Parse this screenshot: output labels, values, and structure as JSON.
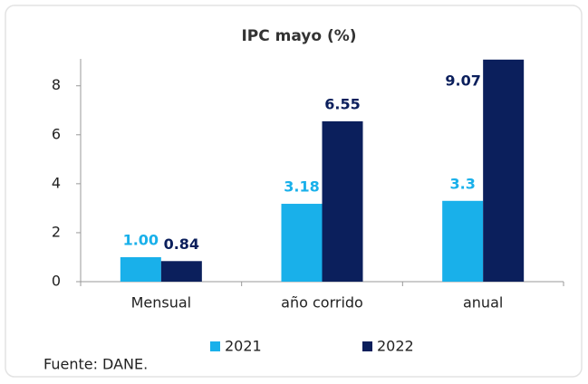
{
  "chart_data": {
    "type": "bar",
    "title": "IPC mayo (%)",
    "categories": [
      "Mensual",
      "año corrido",
      "anual"
    ],
    "series": [
      {
        "name": "2021",
        "color": "#19b0ea",
        "values": [
          1.0,
          3.18,
          3.3
        ],
        "value_labels": [
          "1.00",
          "3.18",
          "3.3"
        ]
      },
      {
        "name": "2022",
        "color": "#0b1f5c",
        "values": [
          0.84,
          6.55,
          9.07
        ],
        "value_labels": [
          "0.84",
          "6.55",
          "9.07"
        ]
      }
    ],
    "ylim": [
      0,
      9.1
    ],
    "yticks": [
      0,
      2,
      4,
      6,
      8
    ],
    "grid": false,
    "legend": "bottom",
    "source": "Fuente: DANE."
  }
}
